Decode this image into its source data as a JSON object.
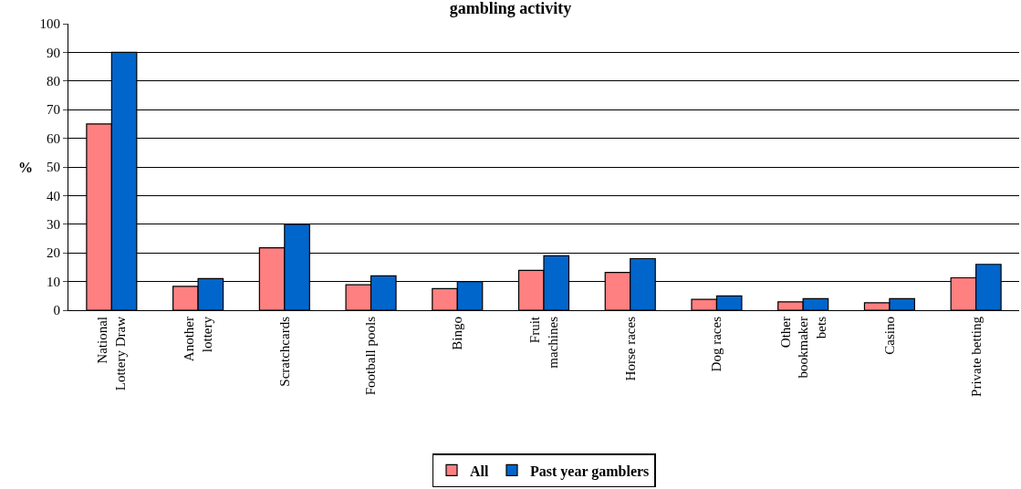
{
  "chart_data": {
    "type": "bar",
    "title": "gambling activity",
    "ylabel": "%",
    "categories": [
      "National\nLottery Draw",
      "Another\nlottery",
      "Scratchcards",
      "Football pools",
      "Bingo",
      "Fruit\nmachines",
      "Horse races",
      "Dog races",
      "Other\nbookmaker\nbets",
      "Casino",
      "Private betting"
    ],
    "series": [
      {
        "name": "All",
        "color": "#ff8080",
        "values": [
          65,
          8.3,
          21.8,
          8.9,
          7.5,
          13.9,
          13.2,
          3.8,
          2.9,
          2.6,
          11.3
        ]
      },
      {
        "name": "Past year gamblers",
        "color": "#0066cc",
        "values": [
          90,
          11,
          30,
          12,
          10,
          19,
          18,
          5,
          4,
          4,
          16
        ]
      }
    ],
    "ylim": [
      0,
      100
    ],
    "yticks": [
      0,
      10,
      20,
      30,
      40,
      50,
      60,
      70,
      80,
      90,
      100
    ],
    "grid": "y",
    "legend": "bottom"
  }
}
